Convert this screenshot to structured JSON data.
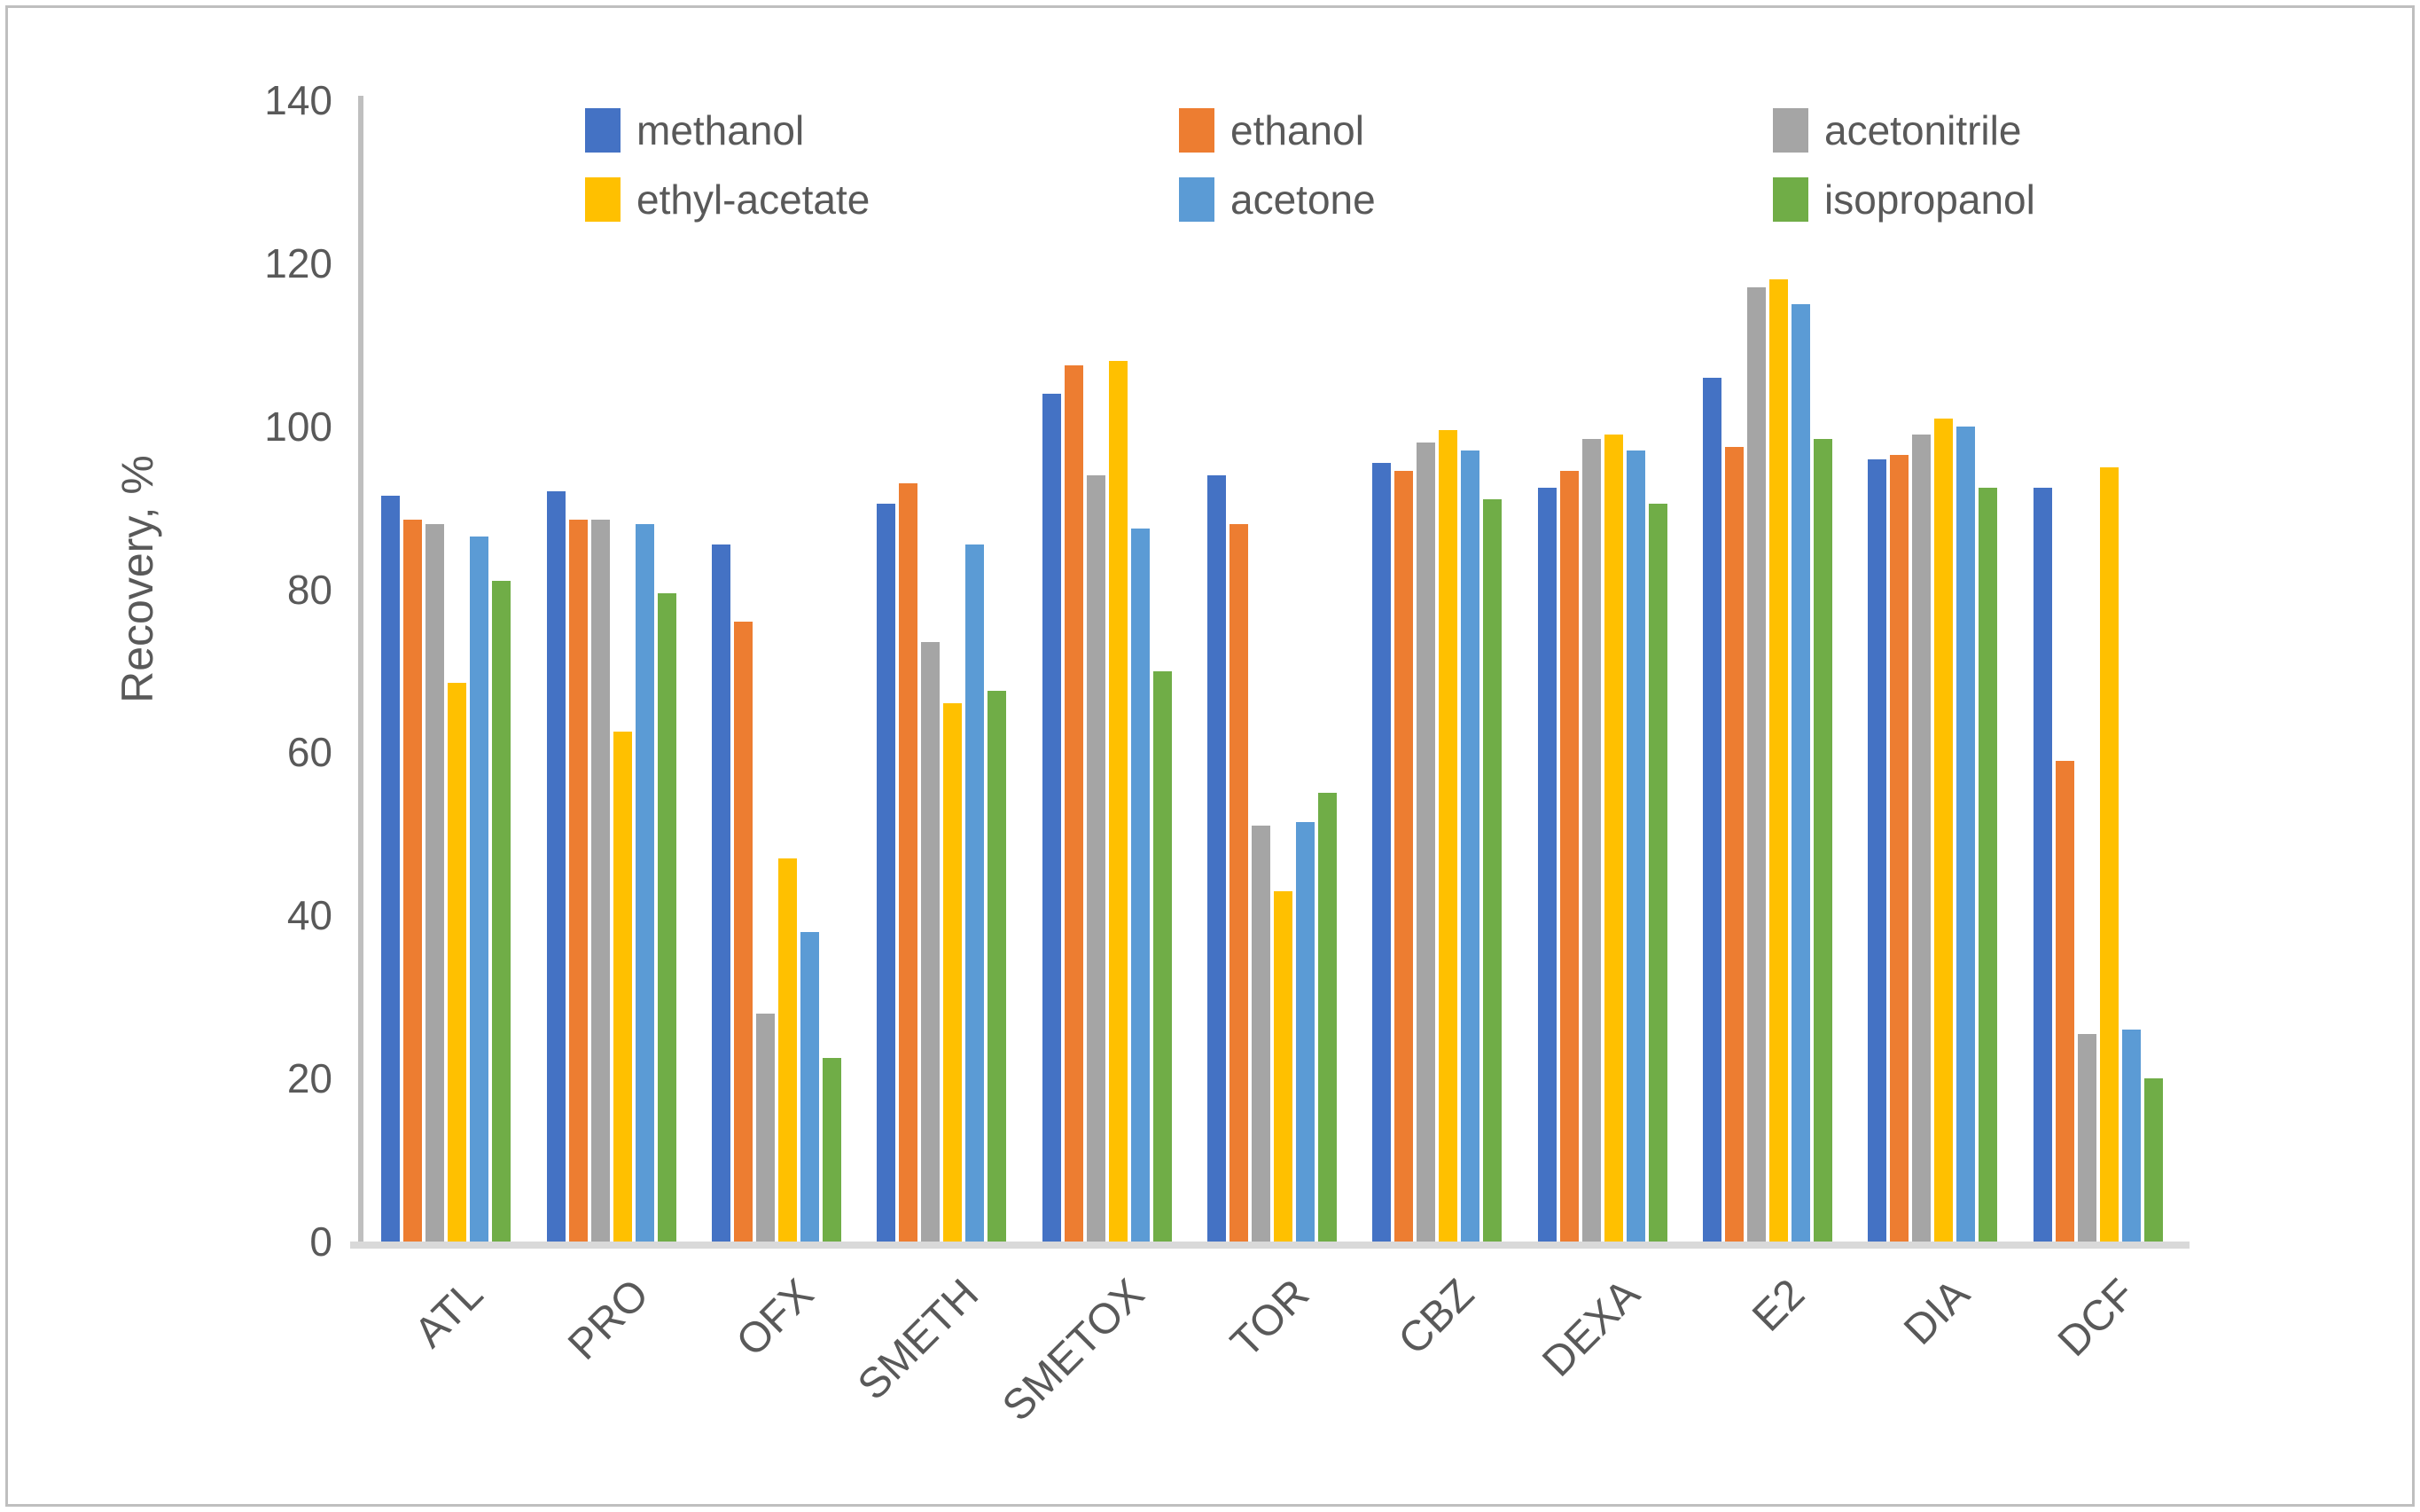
{
  "frame": {
    "background": "#ffffff",
    "border_color": "#bfbfbf"
  },
  "axis": {
    "text_color": "#595959",
    "y_axis_line_color": "#bfbfbf",
    "x_axis_line_color": "#d9d9d9",
    "y_title": "Recovery, %"
  },
  "chart_data": {
    "type": "bar",
    "title": "",
    "xlabel": "",
    "ylabel": "Recovery, %",
    "ylim": [
      0,
      140
    ],
    "yticks": [
      0,
      20,
      40,
      60,
      80,
      100,
      120,
      140
    ],
    "grid": false,
    "legend_position": "top-center, 2 rows x 3 columns",
    "categories": [
      "ATL",
      "PRO",
      "OFX",
      "SMETH",
      "SMETOX",
      "TOR",
      "CBZ",
      "DEXA",
      "E2",
      "DIA",
      "DCF"
    ],
    "series": [
      {
        "name": "methanol",
        "color": "#4472C4",
        "values": [
          91.5,
          92,
          85.5,
          90.5,
          104,
          94,
          95.5,
          92.5,
          106,
          96,
          92.5
        ]
      },
      {
        "name": "ethanol",
        "color": "#ED7D31",
        "values": [
          88.5,
          88.5,
          76,
          93,
          107.5,
          88,
          94.5,
          94.5,
          97.5,
          96.5,
          59
        ]
      },
      {
        "name": "acetonitrile",
        "color": "#A5A5A5",
        "values": [
          88,
          88.5,
          28,
          73.5,
          94,
          51,
          98,
          98.5,
          117,
          99,
          25.5
        ]
      },
      {
        "name": "ethyl-acetate",
        "color": "#FFC000",
        "values": [
          68.5,
          62.5,
          47,
          66,
          108,
          43,
          99.5,
          99,
          118,
          101,
          95
        ]
      },
      {
        "name": "acetone",
        "color": "#5B9BD5",
        "values": [
          86.5,
          88,
          38,
          85.5,
          87.5,
          51.5,
          97,
          97,
          115,
          100,
          26
        ]
      },
      {
        "name": "isopropanol",
        "color": "#70AD47",
        "values": [
          81,
          79.5,
          22.5,
          67.5,
          70,
          55,
          91,
          90.5,
          98.5,
          92.5,
          20
        ]
      }
    ]
  }
}
